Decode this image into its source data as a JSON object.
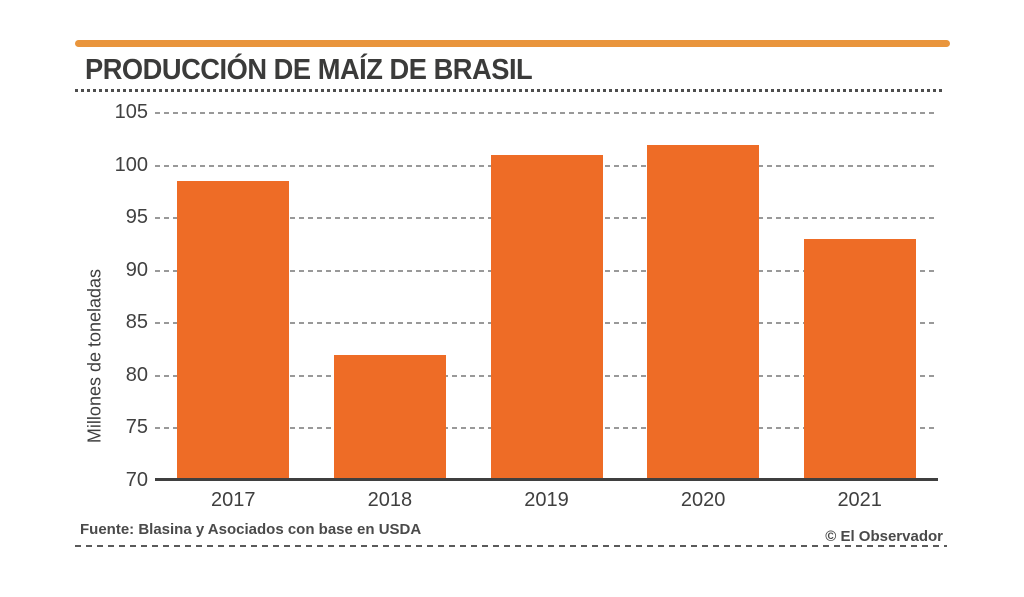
{
  "header": {
    "title": "PRODUCCIÓN DE MAÍZ DE BRASIL"
  },
  "chart_data": {
    "type": "bar",
    "title": "PRODUCCIÓN DE MAÍZ DE BRASIL",
    "categories": [
      "2017",
      "2018",
      "2019",
      "2020",
      "2021"
    ],
    "values": [
      98.5,
      82,
      101,
      102,
      93
    ],
    "xlabel": "",
    "ylabel": "Millones de toneladas",
    "ylim": [
      70,
      105
    ],
    "yticks": [
      105,
      100,
      95,
      90,
      85,
      80,
      75,
      70
    ],
    "grid": "horizontal-dashed",
    "legend": "none",
    "bar_color": "#ee6c26"
  },
  "footer": {
    "source": "Fuente: Blasina y Asociados con base en USDA",
    "credit": "© El Observador"
  },
  "colors": {
    "bar": "#ee6c26",
    "accent_rule": "#e9953c",
    "title_text": "#3b3b3a",
    "axis_text": "#3f3f3f",
    "gridline": "#999999",
    "baseline": "#3f3f3f",
    "background": "#ffffff"
  }
}
